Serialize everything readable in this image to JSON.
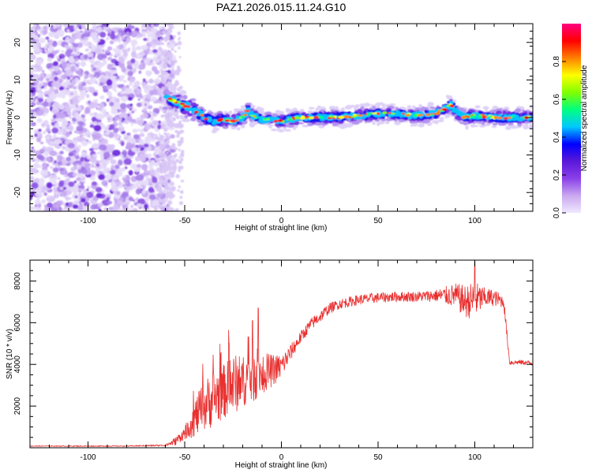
{
  "title": "PAZ1.2026.015.11.24.G10",
  "chart_data": [
    {
      "type": "heatmap",
      "name": "spectrogram",
      "xlabel": "Height of straight line (km)",
      "ylabel": "Frequency (Hz)",
      "xlim": [
        -130,
        130
      ],
      "ylim": [
        -25,
        25
      ],
      "xticks": [
        -100,
        -50,
        0,
        50,
        100
      ],
      "yticks": [
        -20,
        -10,
        0,
        10,
        20
      ],
      "noise_region_x": [
        -130,
        -60
      ],
      "ridge": {
        "x": [
          -60,
          -55,
          -50,
          -45,
          -40,
          -35,
          -30,
          -25,
          -20,
          -17,
          -15,
          -10,
          -5,
          0,
          10,
          20,
          30,
          40,
          50,
          60,
          70,
          80,
          85,
          88,
          90,
          95,
          100,
          110,
          120,
          130
        ],
        "freq": [
          5,
          4.5,
          3,
          2,
          0,
          -1,
          -0.5,
          -1,
          0,
          2,
          0.5,
          -0.5,
          -0.5,
          -1,
          0,
          0,
          0,
          0.5,
          1,
          1,
          0.5,
          1,
          2.5,
          3.5,
          1.5,
          0,
          0.5,
          0,
          0,
          0
        ]
      },
      "colorbar": {
        "label": "Normalized spectral amplitude",
        "range": [
          0,
          1
        ],
        "ticks": [
          "0.0",
          "0.2",
          "0.4",
          "0.6",
          "0.8"
        ],
        "colors": [
          "#f0e8ff",
          "#c9a8f0",
          "#8a40e8",
          "#5a18d8",
          "#0000ff",
          "#00c8ff",
          "#00ff80",
          "#80ff00",
          "#ffff00",
          "#ff8000",
          "#ff0000",
          "#ff0080"
        ]
      }
    },
    {
      "type": "line",
      "name": "snr",
      "xlabel": "Height of straight line (km)",
      "ylabel": "SNR (10 * v/v)",
      "xlim": [
        -130,
        130
      ],
      "ylim": [
        0,
        9000
      ],
      "xticks": [
        -100,
        -50,
        0,
        50,
        100
      ],
      "yticks": [
        2000,
        4000,
        6000,
        8000
      ],
      "color": "#e8302f",
      "series": [
        {
          "name": "SNR",
          "x": [
            -130,
            -80,
            -60,
            -55,
            -50,
            -45,
            -40,
            -35,
            -30,
            -25,
            -20,
            -15,
            -10,
            -5,
            0,
            5,
            10,
            15,
            20,
            25,
            30,
            40,
            50,
            60,
            70,
            80,
            90,
            95,
            100,
            105,
            110,
            115,
            118,
            120,
            125,
            130
          ],
          "y": [
            80,
            80,
            120,
            300,
            700,
            1400,
            2000,
            2400,
            2700,
            3000,
            3200,
            3400,
            3600,
            3700,
            3900,
            4600,
            5300,
            5900,
            6300,
            6700,
            6900,
            7100,
            7200,
            7250,
            7250,
            7300,
            7300,
            7000,
            7100,
            7200,
            7200,
            7000,
            4100,
            4100,
            4100,
            4050
          ],
          "noise_amplitude": [
            20,
            20,
            40,
            200,
            300,
            900,
            1200,
            1400,
            1300,
            1500,
            1200,
            1300,
            1000,
            800,
            600,
            400,
            300,
            300,
            300,
            250,
            250,
            250,
            250,
            250,
            250,
            300,
            600,
            800,
            900,
            500,
            400,
            300,
            150,
            120,
            120,
            120
          ],
          "spikes": [
            {
              "x": -27,
              "y": 5000
            },
            {
              "x": -15,
              "y": 6100
            },
            {
              "x": -12,
              "y": 6700
            },
            {
              "x": 100,
              "y": 8950
            }
          ]
        }
      ]
    }
  ]
}
